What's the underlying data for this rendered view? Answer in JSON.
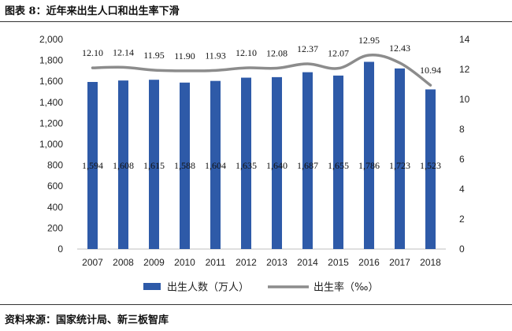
{
  "title": "图表 8：近年来出生人口和出生率下滑",
  "source": "资料来源：国家统计局、新三板智库",
  "chart_data": {
    "type": "bar",
    "categories": [
      "2007",
      "2008",
      "2009",
      "2010",
      "2011",
      "2012",
      "2013",
      "2014",
      "2015",
      "2016",
      "2017",
      "2018"
    ],
    "series": [
      {
        "name": "出生人数（万人）",
        "type": "bar",
        "axis": "left",
        "color": "#2e5aa8",
        "values": [
          1594,
          1608,
          1615,
          1588,
          1604,
          1635,
          1640,
          1687,
          1655,
          1786,
          1723,
          1523
        ],
        "labels": [
          "1,594",
          "1,608",
          "1,615",
          "1,588",
          "1,604",
          "1,635",
          "1,640",
          "1,687",
          "1,655",
          "1,786",
          "1,723",
          "1,523"
        ]
      },
      {
        "name": "出生率（‰）",
        "type": "line",
        "axis": "right",
        "color": "#8c8c8c",
        "values": [
          12.1,
          12.14,
          11.95,
          11.9,
          11.93,
          12.1,
          12.08,
          12.37,
          12.07,
          12.95,
          12.43,
          10.94
        ],
        "labels": [
          "12.10",
          "12.14",
          "11.95",
          "11.90",
          "11.93",
          "12.10",
          "12.08",
          "12.37",
          "12.07",
          "12.95",
          "12.43",
          "10.94"
        ]
      }
    ],
    "ylim_left": [
      0,
      2000
    ],
    "yticks_left": [
      "0",
      "200",
      "400",
      "600",
      "800",
      "1,000",
      "1,200",
      "1,400",
      "1,600",
      "1,800",
      "2,000"
    ],
    "ylim_right": [
      0,
      14
    ],
    "yticks_right": [
      "0",
      "2",
      "4",
      "6",
      "8",
      "10",
      "12",
      "14"
    ],
    "grid": false,
    "legend": "bottom"
  }
}
